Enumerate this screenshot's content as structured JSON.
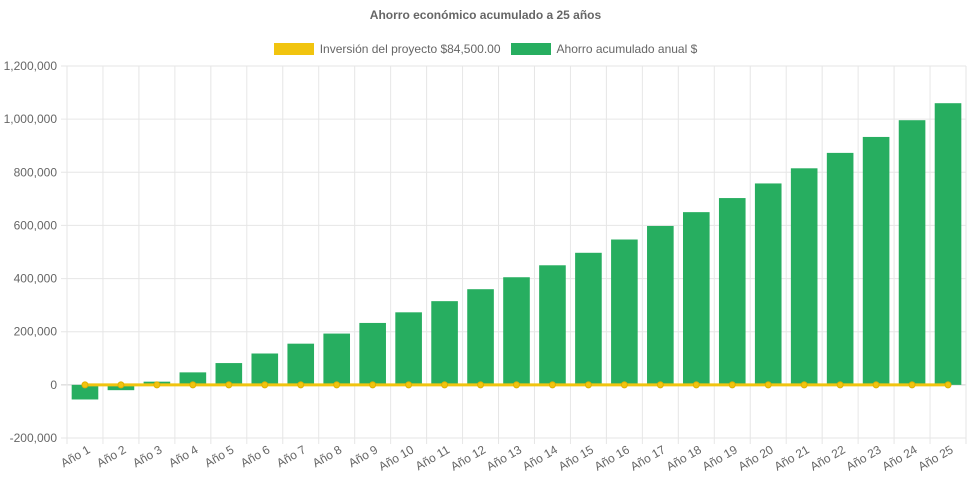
{
  "chart_data": {
    "type": "bar",
    "title": "Ahorro económico acumulado a 25 años",
    "categories": [
      "Año 1",
      "Año 2",
      "Año 3",
      "Año 4",
      "Año 5",
      "Año 6",
      "Año 7",
      "Año 8",
      "Año 9",
      "Año 10",
      "Año 11",
      "Año 12",
      "Año 13",
      "Año 14",
      "Año 15",
      "Año 16",
      "Año 17",
      "Año 18",
      "Año 19",
      "Año 20",
      "Año 21",
      "Año 22",
      "Año 23",
      "Año 24",
      "Año 25"
    ],
    "series": [
      {
        "name": "Inversión del proyecto $84,500.00",
        "type": "line",
        "color": "#f1c40f",
        "values": [
          0,
          0,
          0,
          0,
          0,
          0,
          0,
          0,
          0,
          0,
          0,
          0,
          0,
          0,
          0,
          0,
          0,
          0,
          0,
          0,
          0,
          0,
          0,
          0,
          0
        ]
      },
      {
        "name": "Ahorro acumulado anual $",
        "type": "bar",
        "color": "#27ae60",
        "values": [
          -55000,
          -20000,
          12000,
          47000,
          82000,
          118000,
          155000,
          193000,
          233000,
          273000,
          315000,
          360000,
          405000,
          450000,
          497000,
          547000,
          598000,
          650000,
          703000,
          758000,
          815000,
          873000,
          933000,
          996000,
          1060000
        ]
      }
    ],
    "ylim": [
      -200000,
      1200000
    ],
    "yticks": [
      "1,200,000",
      "1,000,000",
      "800,000",
      "600,000",
      "400,000",
      "200,000",
      "0",
      "-200,000"
    ],
    "ytick_values": [
      1200000,
      1000000,
      800000,
      600000,
      400000,
      200000,
      0,
      -200000
    ],
    "grid": true,
    "legend_position": "top-center"
  }
}
